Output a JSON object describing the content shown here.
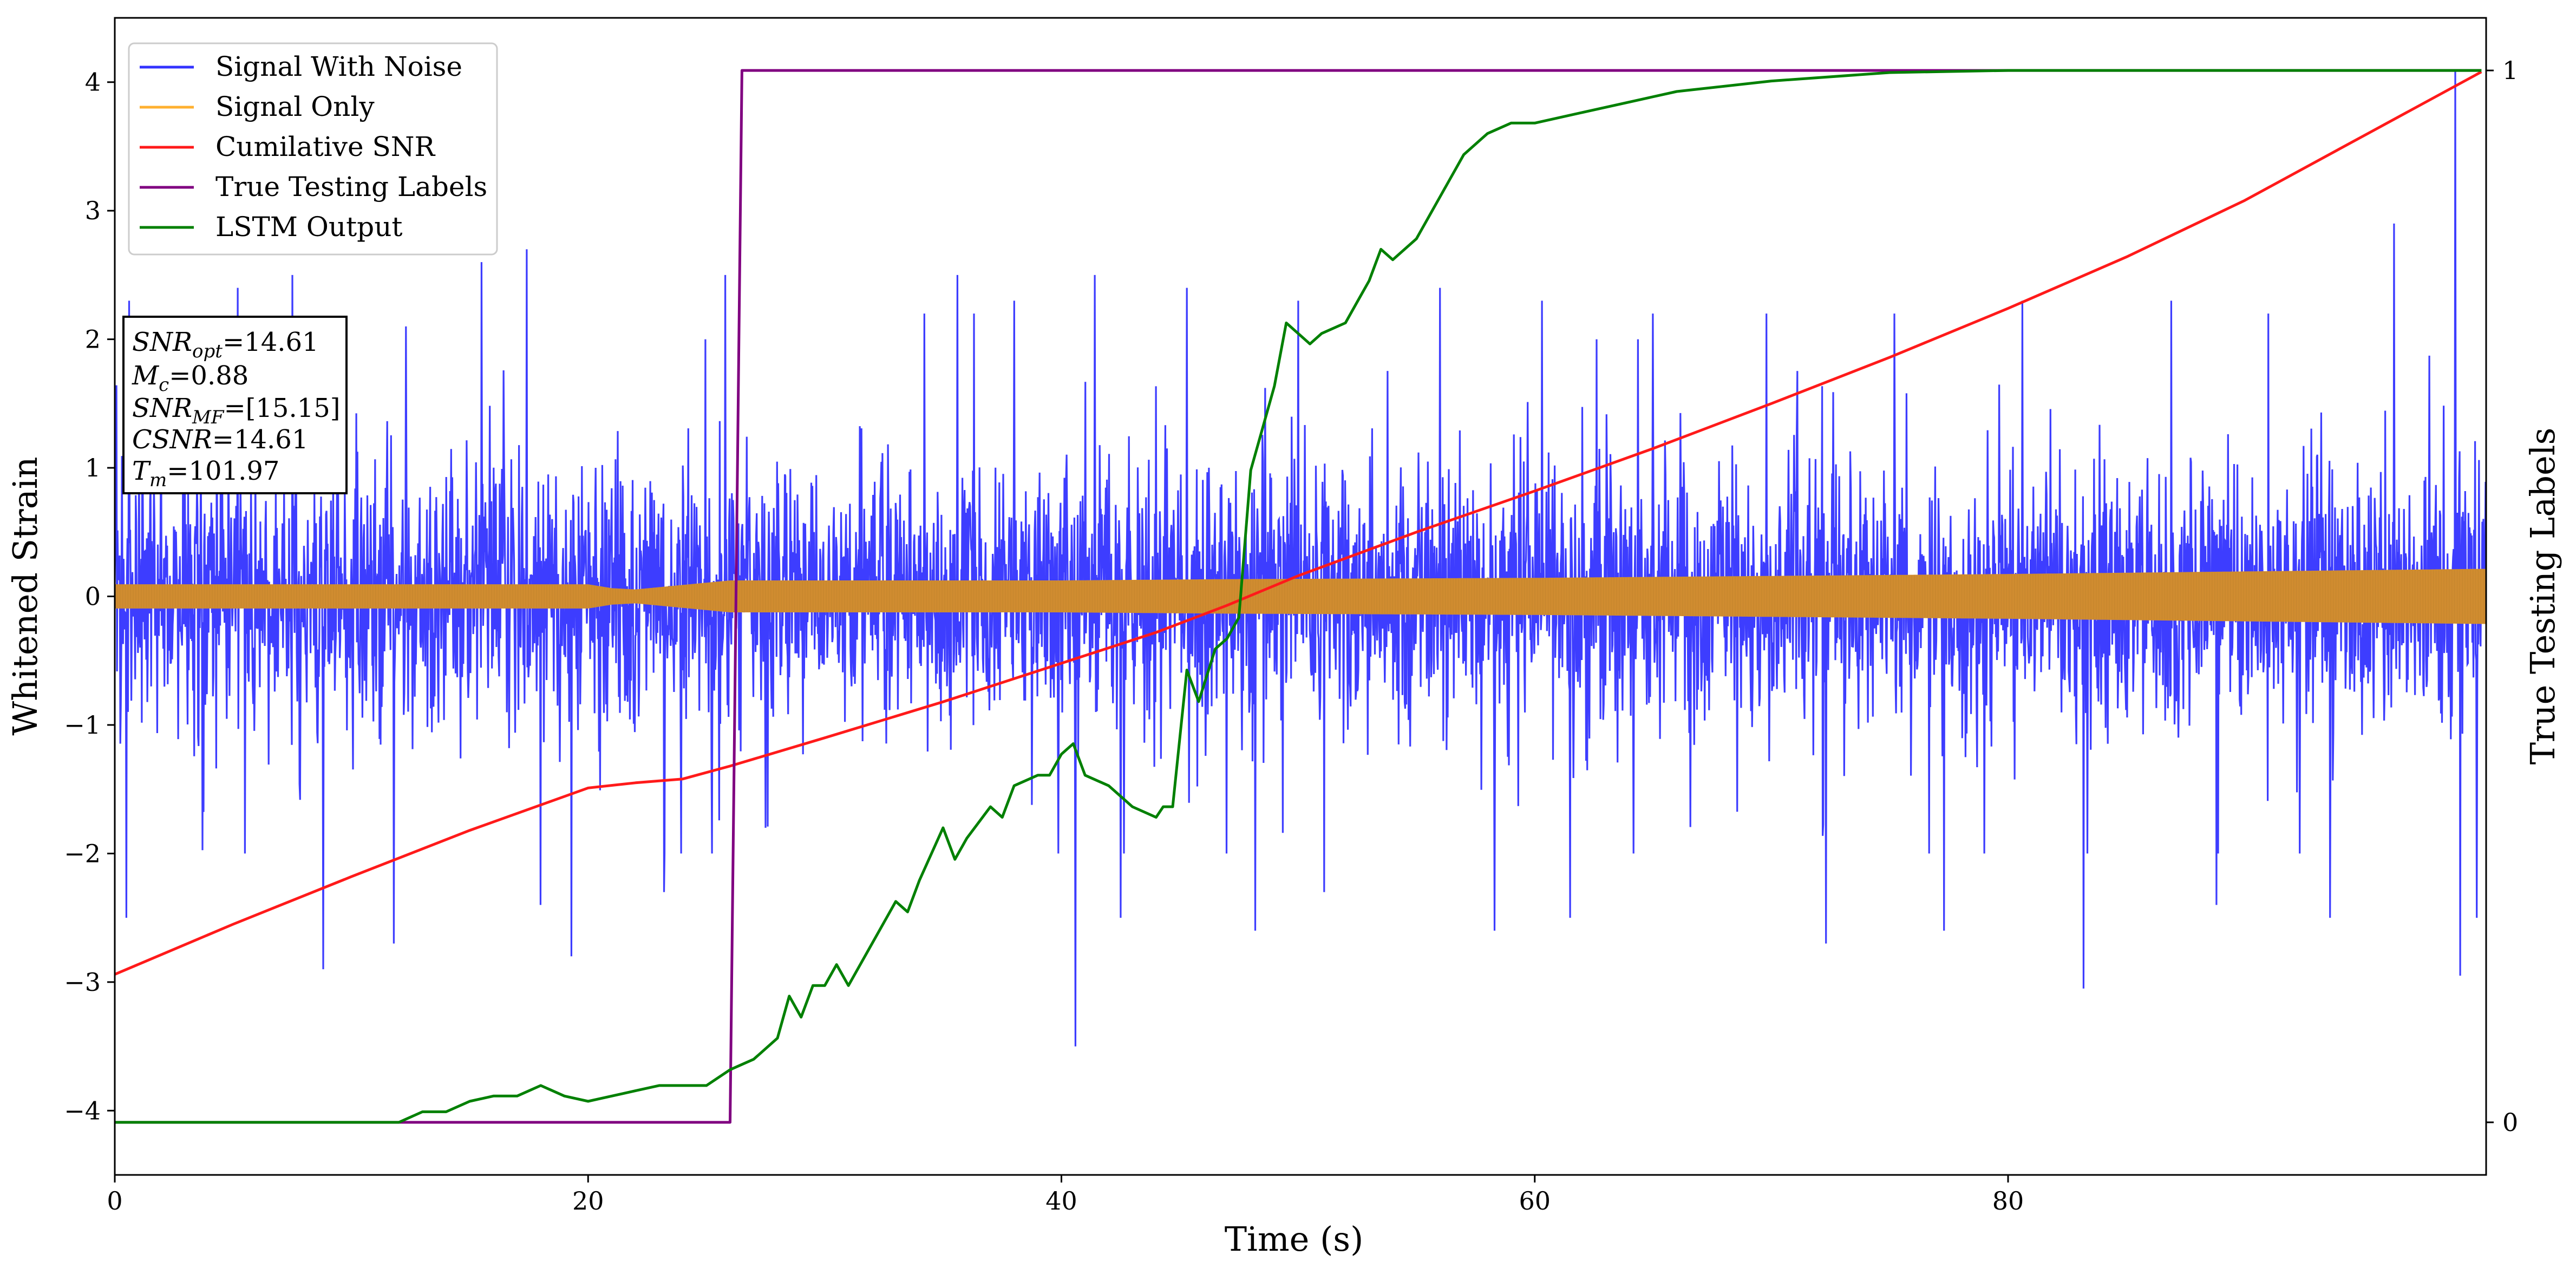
{
  "chart_data": {
    "type": "line",
    "xlabel": "Time (s)",
    "ylabel": "Whitened Strain",
    "y2label": "True Testing Labels",
    "xlim": [
      0,
      100.2
    ],
    "ylim": [
      -4.5,
      4.5
    ],
    "y2lim": [
      -0.05,
      1.05
    ],
    "xticks": [
      {
        "v": 0,
        "label": "0"
      },
      {
        "v": 20,
        "label": "20"
      },
      {
        "v": 40,
        "label": "40"
      },
      {
        "v": 60,
        "label": "60"
      },
      {
        "v": 80,
        "label": "80"
      }
    ],
    "yticks": [
      {
        "v": -4,
        "label": "−4"
      },
      {
        "v": -3,
        "label": "−3"
      },
      {
        "v": -2,
        "label": "−2"
      },
      {
        "v": -1,
        "label": "−1"
      },
      {
        "v": 0,
        "label": "0"
      },
      {
        "v": 1,
        "label": "1"
      },
      {
        "v": 2,
        "label": "2"
      },
      {
        "v": 3,
        "label": "3"
      },
      {
        "v": 4,
        "label": "4"
      }
    ],
    "y2ticks": [
      {
        "v": 0,
        "label": "0"
      },
      {
        "v": 1,
        "label": "1"
      }
    ],
    "legend": {
      "placement": "upper-left",
      "entries": [
        {
          "label": "Signal With Noise",
          "color": "#3333ff"
        },
        {
          "label": "Signal Only",
          "color": "#ffb030"
        },
        {
          "label": "Cumilative SNR",
          "color": "#ff1a1a"
        },
        {
          "label": "True Testing Labels",
          "color": "#800080"
        },
        {
          "label": "LSTM Output",
          "color": "#008000"
        }
      ]
    },
    "annotation": {
      "placement": "upper-left",
      "lines": [
        {
          "sym": "SNR",
          "sub": "opt",
          "val": "=14.61"
        },
        {
          "sym": "M",
          "sub": "c",
          "val": "=0.88"
        },
        {
          "sym": "SNR",
          "sub": "MF",
          "val": "=[15.15]"
        },
        {
          "sym": "CSNR",
          "sub": "",
          "val": "=14.61"
        },
        {
          "sym": "T",
          "sub": "m",
          "val": "=101.97"
        }
      ]
    },
    "series": [
      {
        "name": "Signal With Noise",
        "axis": "left",
        "color": "#3333ff",
        "style": "noise",
        "description": "dense noisy strain, mostly within ±1.5, spikes up to ~4.1 near t=99 and down to ~-3.5 near t=40.6",
        "spikes": [
          [
            0.6,
            2.3
          ],
          [
            0.5,
            -2.5
          ],
          [
            5.2,
            2.4
          ],
          [
            5.5,
            -2.0
          ],
          [
            7.5,
            2.5
          ],
          [
            8.8,
            -2.9
          ],
          [
            12.3,
            2.1
          ],
          [
            11.8,
            -2.7
          ],
          [
            15.5,
            2.6
          ],
          [
            17.4,
            2.7
          ],
          [
            18.0,
            -2.4
          ],
          [
            19.3,
            -2.8
          ],
          [
            25.8,
            2.5
          ],
          [
            23.2,
            -2.3
          ],
          [
            27.5,
            -1.8
          ],
          [
            34.2,
            2.2
          ],
          [
            35.6,
            2.5
          ],
          [
            36.3,
            2.2
          ],
          [
            38.0,
            2.3
          ],
          [
            40.6,
            -3.5
          ],
          [
            41.4,
            2.5
          ],
          [
            42.5,
            -2.5
          ],
          [
            45.3,
            2.4
          ],
          [
            48.2,
            -2.6
          ],
          [
            50.0,
            2.3
          ],
          [
            51.1,
            -2.3
          ],
          [
            56.0,
            2.4
          ],
          [
            58.3,
            -2.6
          ],
          [
            60.3,
            2.3
          ],
          [
            61.5,
            -2.5
          ],
          [
            65.0,
            2.2
          ],
          [
            69.8,
            2.2
          ],
          [
            72.3,
            -2.7
          ],
          [
            75.2,
            2.2
          ],
          [
            77.3,
            -2.6
          ],
          [
            80.6,
            2.3
          ],
          [
            83.2,
            -3.05
          ],
          [
            86.9,
            2.3
          ],
          [
            88.8,
            -2.4
          ],
          [
            91.0,
            2.2
          ],
          [
            93.6,
            -2.5
          ],
          [
            96.3,
            2.9
          ],
          [
            98.9,
            4.1
          ],
          [
            99.1,
            -2.95
          ],
          [
            99.8,
            -2.5
          ]
        ]
      },
      {
        "name": "Signal Only",
        "axis": "left",
        "color": "#d08c30",
        "style": "envelope",
        "envelope": [
          [
            0,
            0.09
          ],
          [
            20,
            0.09
          ],
          [
            21,
            0.06
          ],
          [
            22,
            0.05
          ],
          [
            26,
            0.12
          ],
          [
            40,
            0.12
          ],
          [
            47,
            0.13
          ],
          [
            60,
            0.14
          ],
          [
            80,
            0.17
          ],
          [
            95,
            0.2
          ],
          [
            100,
            0.21
          ]
        ]
      },
      {
        "name": "Cumilative SNR",
        "axis": "left",
        "color": "#ff1a1a",
        "points": [
          [
            0,
            -2.94
          ],
          [
            5,
            -2.55
          ],
          [
            10,
            -2.18
          ],
          [
            15,
            -1.82
          ],
          [
            20,
            -1.49
          ],
          [
            22,
            -1.45
          ],
          [
            24,
            -1.42
          ],
          [
            26,
            -1.32
          ],
          [
            30,
            -1.1
          ],
          [
            35,
            -0.82
          ],
          [
            40,
            -0.52
          ],
          [
            44,
            -0.28
          ],
          [
            47,
            -0.07
          ],
          [
            50,
            0.16
          ],
          [
            55,
            0.5
          ],
          [
            60,
            0.82
          ],
          [
            65,
            1.15
          ],
          [
            70,
            1.5
          ],
          [
            75,
            1.86
          ],
          [
            80,
            2.24
          ],
          [
            85,
            2.64
          ],
          [
            90,
            3.08
          ],
          [
            95,
            3.58
          ],
          [
            100,
            4.08
          ]
        ]
      },
      {
        "name": "True Testing Labels",
        "axis": "right",
        "color": "#800080",
        "points": [
          [
            0,
            0
          ],
          [
            26.0,
            0
          ],
          [
            26.5,
            1
          ],
          [
            100,
            1
          ]
        ]
      },
      {
        "name": "LSTM Output",
        "axis": "right",
        "color": "#008000",
        "points": [
          [
            0,
            0
          ],
          [
            12,
            0
          ],
          [
            13,
            0.01
          ],
          [
            14,
            0.01
          ],
          [
            15,
            0.02
          ],
          [
            16,
            0.025
          ],
          [
            17,
            0.025
          ],
          [
            18,
            0.035
          ],
          [
            19,
            0.025
          ],
          [
            20,
            0.02
          ],
          [
            21,
            0.025
          ],
          [
            22,
            0.03
          ],
          [
            23,
            0.035
          ],
          [
            24,
            0.035
          ],
          [
            25,
            0.035
          ],
          [
            26,
            0.05
          ],
          [
            27,
            0.06
          ],
          [
            28,
            0.08
          ],
          [
            28.5,
            0.12
          ],
          [
            29,
            0.1
          ],
          [
            29.5,
            0.13
          ],
          [
            30,
            0.13
          ],
          [
            30.5,
            0.15
          ],
          [
            31,
            0.13
          ],
          [
            32,
            0.17
          ],
          [
            32.5,
            0.19
          ],
          [
            33,
            0.21
          ],
          [
            33.5,
            0.2
          ],
          [
            34,
            0.23
          ],
          [
            35,
            0.28
          ],
          [
            35.5,
            0.25
          ],
          [
            36,
            0.27
          ],
          [
            37,
            0.3
          ],
          [
            37.5,
            0.29
          ],
          [
            38,
            0.32
          ],
          [
            39,
            0.33
          ],
          [
            39.5,
            0.33
          ],
          [
            40,
            0.35
          ],
          [
            40.5,
            0.36
          ],
          [
            41,
            0.33
          ],
          [
            42,
            0.32
          ],
          [
            42.5,
            0.31
          ],
          [
            43,
            0.3
          ],
          [
            44,
            0.29
          ],
          [
            44.3,
            0.3
          ],
          [
            44.7,
            0.3
          ],
          [
            45.3,
            0.43
          ],
          [
            45.8,
            0.4
          ],
          [
            46.5,
            0.45
          ],
          [
            47,
            0.46
          ],
          [
            47.5,
            0.48
          ],
          [
            48,
            0.62
          ],
          [
            48.5,
            0.66
          ],
          [
            49,
            0.7
          ],
          [
            49.5,
            0.76
          ],
          [
            50,
            0.75
          ],
          [
            50.5,
            0.74
          ],
          [
            51,
            0.75
          ],
          [
            52,
            0.76
          ],
          [
            52.5,
            0.78
          ],
          [
            53,
            0.8
          ],
          [
            53.5,
            0.83
          ],
          [
            54,
            0.82
          ],
          [
            55,
            0.84
          ],
          [
            56,
            0.88
          ],
          [
            57,
            0.92
          ],
          [
            58,
            0.94
          ],
          [
            59,
            0.95
          ],
          [
            60,
            0.95
          ],
          [
            62,
            0.96
          ],
          [
            64,
            0.97
          ],
          [
            66,
            0.98
          ],
          [
            70,
            0.99
          ],
          [
            75,
            0.998
          ],
          [
            80,
            1.0
          ],
          [
            90,
            1.0
          ],
          [
            100,
            1.0
          ]
        ]
      }
    ]
  }
}
